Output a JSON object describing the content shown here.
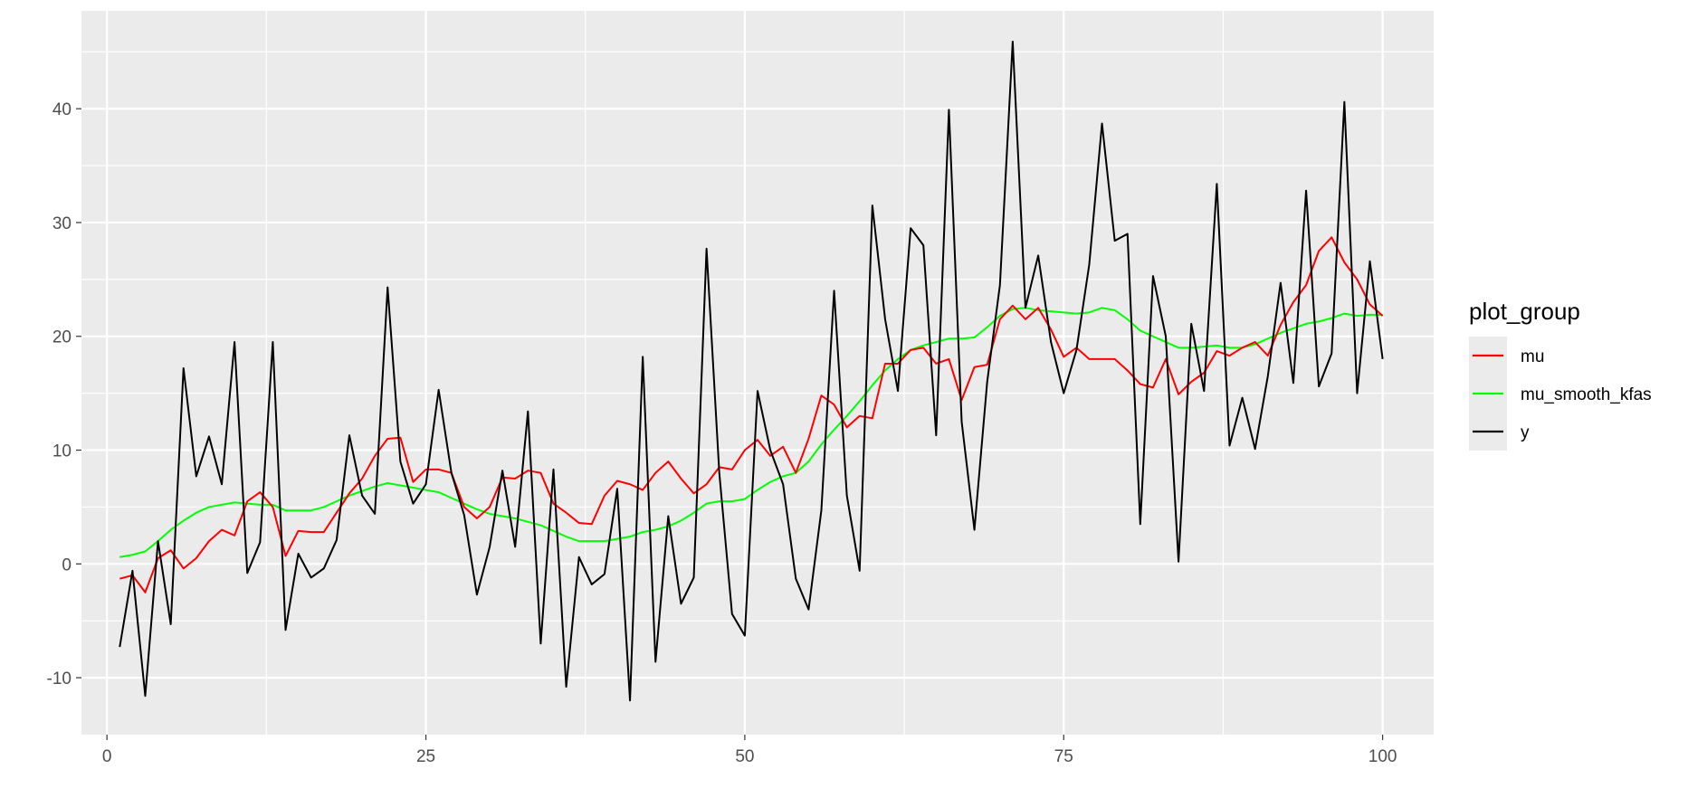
{
  "chart_data": {
    "type": "line",
    "title": "",
    "xlabel": "",
    "ylabel": "",
    "xlim": [
      -2,
      104
    ],
    "ylim": [
      -15,
      48.6
    ],
    "x_ticks": [
      0,
      25,
      50,
      75,
      100
    ],
    "x_tick_labels": [
      "0",
      "25",
      "50",
      "75",
      "100"
    ],
    "y_ticks": [
      -10,
      0,
      10,
      20,
      30,
      40
    ],
    "y_tick_labels": [
      "-10",
      "0",
      "10",
      "20",
      "30",
      "40"
    ],
    "x_minor_ticks": [
      12.5,
      37.5,
      62.5,
      87.5
    ],
    "y_minor_ticks": [
      -5,
      5,
      15,
      25,
      35,
      45
    ],
    "grid": true,
    "panel_background": "#ebebeb",
    "grid_color": "#ffffff",
    "legend": {
      "title": "plot_group",
      "position": "right",
      "background": "#ebebeb"
    },
    "x": [
      1,
      2,
      3,
      4,
      5,
      6,
      7,
      8,
      9,
      10,
      11,
      12,
      13,
      14,
      15,
      16,
      17,
      18,
      19,
      20,
      21,
      22,
      23,
      24,
      25,
      26,
      27,
      28,
      29,
      30,
      31,
      32,
      33,
      34,
      35,
      36,
      37,
      38,
      39,
      40,
      41,
      42,
      43,
      44,
      45,
      46,
      47,
      48,
      49,
      50,
      51,
      52,
      53,
      54,
      55,
      56,
      57,
      58,
      59,
      60,
      61,
      62,
      63,
      64,
      65,
      66,
      67,
      68,
      69,
      70,
      71,
      72,
      73,
      74,
      75,
      76,
      77,
      78,
      79,
      80,
      81,
      82,
      83,
      84,
      85,
      86,
      87,
      88,
      89,
      90,
      91,
      92,
      93,
      94,
      95,
      96,
      97,
      98,
      99,
      100
    ],
    "series": [
      {
        "name": "mu",
        "color": "#ff0000",
        "values": [
          -1.3,
          -1.0,
          -2.5,
          0.5,
          1.2,
          -0.4,
          0.5,
          2.0,
          3.0,
          2.5,
          5.5,
          6.3,
          5.0,
          0.7,
          2.9,
          2.8,
          2.8,
          4.5,
          6.2,
          7.5,
          9.5,
          11.0,
          11.1,
          7.2,
          8.3,
          8.3,
          8.0,
          5.0,
          4.0,
          5.0,
          7.6,
          7.5,
          8.2,
          8.0,
          5.3,
          4.5,
          3.6,
          3.5,
          6.0,
          7.3,
          7.0,
          6.5,
          8.0,
          9.0,
          7.5,
          6.2,
          7.0,
          8.5,
          8.3,
          10.0,
          10.9,
          9.5,
          10.3,
          8.0,
          11.0,
          14.8,
          14.0,
          12.0,
          13.0,
          12.8,
          17.6,
          17.6,
          18.8,
          19.0,
          17.6,
          18.0,
          14.4,
          17.3,
          17.5,
          21.5,
          22.7,
          21.5,
          22.5,
          20.6,
          18.2,
          19.0,
          18.0,
          18.0,
          18.0,
          17.0,
          15.8,
          15.5,
          18.0,
          14.9,
          16.0,
          16.8,
          18.7,
          18.3,
          19.0,
          19.5,
          18.3,
          21.0,
          23.0,
          24.5,
          27.5,
          28.7,
          26.5,
          25.0,
          22.8,
          21.8
        ]
      },
      {
        "name": "mu_smooth_kfas",
        "color": "#00ff00",
        "values": [
          0.6,
          0.8,
          1.1,
          2.0,
          3.0,
          3.8,
          4.5,
          5.0,
          5.2,
          5.4,
          5.3,
          5.2,
          5.2,
          4.7,
          4.7,
          4.7,
          5.0,
          5.5,
          6.0,
          6.4,
          6.8,
          7.1,
          6.9,
          6.7,
          6.5,
          6.3,
          5.8,
          5.3,
          4.8,
          4.4,
          4.2,
          4.0,
          3.7,
          3.4,
          2.9,
          2.4,
          2.0,
          2.0,
          2.0,
          2.2,
          2.4,
          2.8,
          3.0,
          3.3,
          3.8,
          4.5,
          5.3,
          5.5,
          5.5,
          5.7,
          6.5,
          7.2,
          7.7,
          8.0,
          9.0,
          10.5,
          11.8,
          13.0,
          14.3,
          15.7,
          17.0,
          18.0,
          18.8,
          19.2,
          19.5,
          19.8,
          19.8,
          19.9,
          20.8,
          21.8,
          22.4,
          22.5,
          22.3,
          22.2,
          22.1,
          22.0,
          22.1,
          22.5,
          22.3,
          21.5,
          20.5,
          20.0,
          19.5,
          19.0,
          19.0,
          19.1,
          19.2,
          19.0,
          19.0,
          19.3,
          19.8,
          20.3,
          20.7,
          21.1,
          21.3,
          21.6,
          22.0,
          21.8,
          21.9,
          21.9
        ]
      },
      {
        "name": "y",
        "color": "#000000",
        "values": [
          -7.3,
          -0.6,
          -11.6,
          2.0,
          -5.3,
          17.2,
          7.7,
          11.2,
          7.0,
          19.5,
          -0.8,
          1.9,
          19.5,
          -5.8,
          0.9,
          -1.2,
          -0.4,
          2.1,
          11.3,
          6.0,
          4.4,
          24.3,
          9.0,
          5.3,
          7.0,
          15.3,
          8.0,
          4.3,
          -2.7,
          1.5,
          8.2,
          1.5,
          13.4,
          -7.0,
          8.3,
          -10.8,
          0.6,
          -1.8,
          -0.9,
          6.6,
          -12.0,
          18.2,
          -8.6,
          4.2,
          -3.5,
          -1.2,
          27.7,
          8.0,
          -4.4,
          -6.3,
          15.2,
          10.0,
          7.0,
          -1.3,
          -4.0,
          4.7,
          24.0,
          6.0,
          -0.6,
          31.5,
          21.5,
          15.2,
          29.5,
          28.0,
          11.3,
          39.9,
          12.5,
          3.0,
          16.0,
          24.5,
          45.9,
          22.5,
          27.1,
          19.5,
          15.0,
          18.8,
          26.3,
          38.7,
          28.4,
          29.0,
          3.5,
          25.3,
          20.0,
          0.2,
          21.1,
          15.2,
          33.4,
          10.4,
          14.6,
          10.1,
          16.5,
          24.7,
          15.9,
          32.8,
          15.6,
          18.5,
          40.6,
          15.0,
          26.6,
          18.0
        ]
      }
    ]
  }
}
